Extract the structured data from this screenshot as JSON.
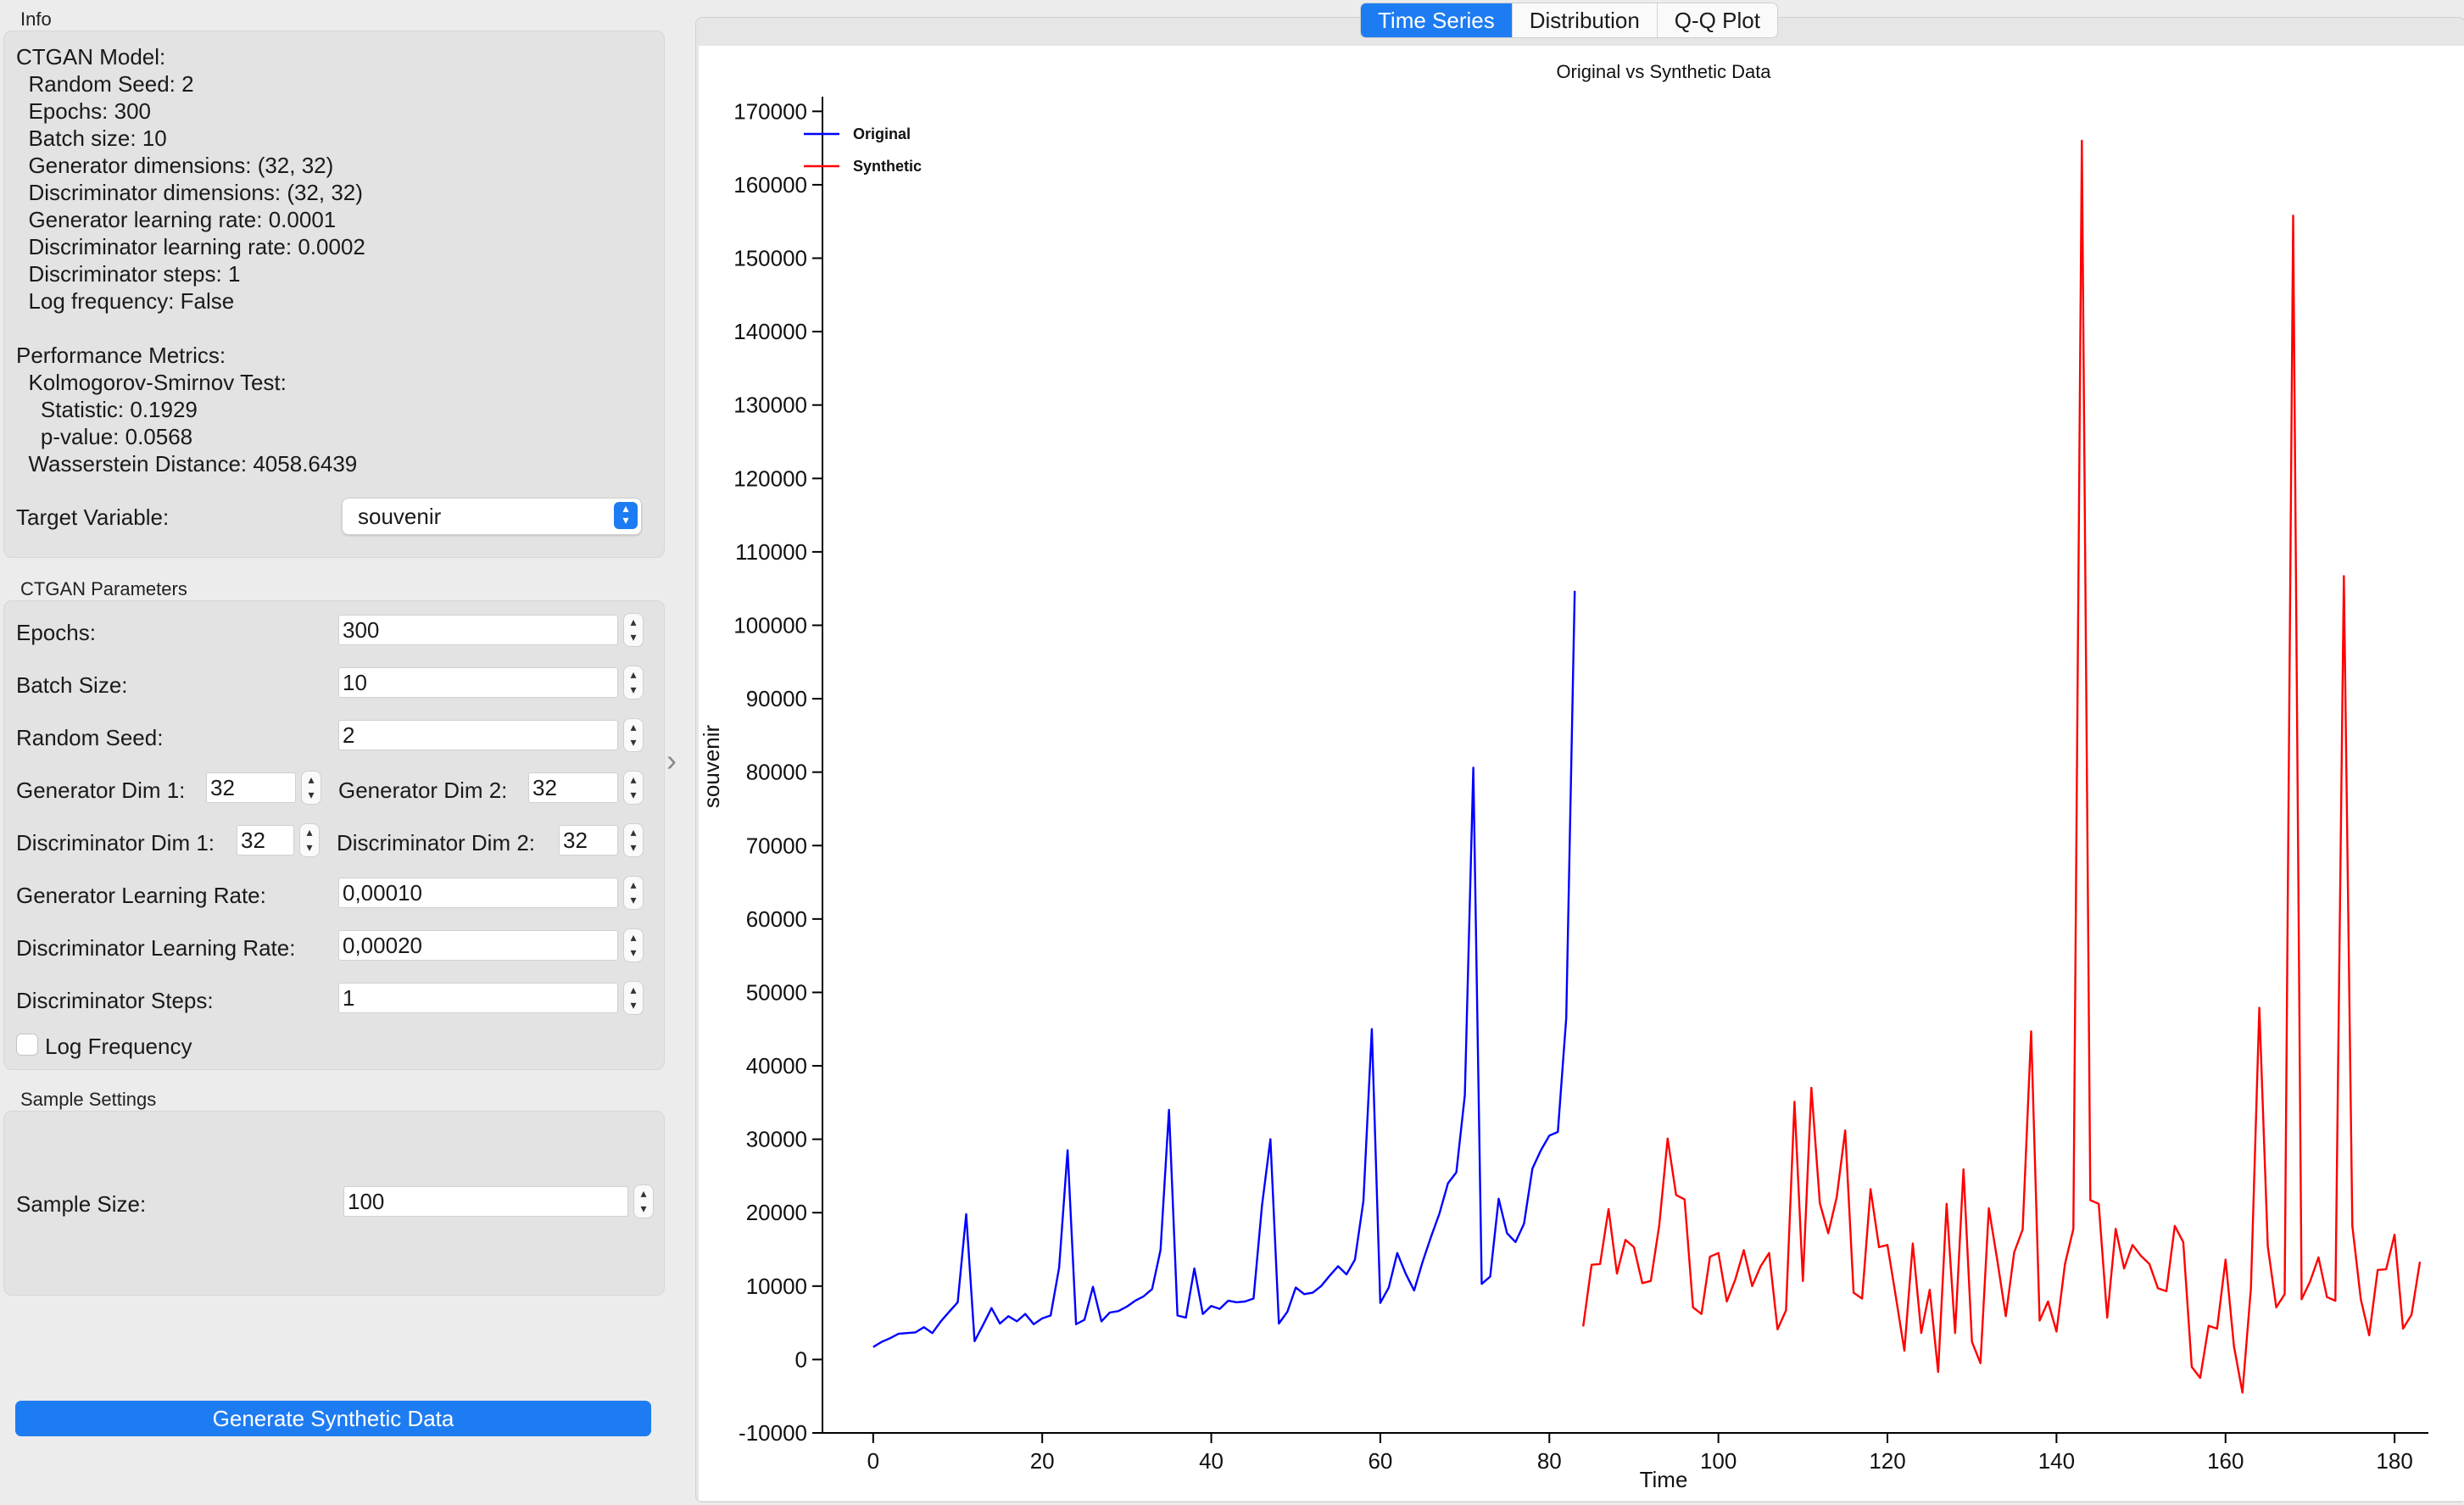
{
  "info": {
    "section_title": "Info",
    "lines": [
      "CTGAN Model:",
      "  Random Seed: 2",
      "  Epochs: 300",
      "  Batch size: 10",
      "  Generator dimensions: (32, 32)",
      "  Discriminator dimensions: (32, 32)",
      "  Generator learning rate: 0.0001",
      "  Discriminator learning rate: 0.0002",
      "  Discriminator steps: 1",
      "  Log frequency: False",
      "",
      "Performance Metrics:",
      "  Kolmogorov-Smirnov Test:",
      "    Statistic: 0.1929",
      "    p-value: 0.0568",
      "  Wasserstein Distance: 4058.6439"
    ],
    "target_label": "Target Variable:",
    "target_value": "souvenir"
  },
  "params": {
    "section_title": "CTGAN Parameters",
    "epochs_label": "Epochs:",
    "epochs": "300",
    "batch_label": "Batch Size:",
    "batch": "10",
    "seed_label": "Random Seed:",
    "seed": "2",
    "gen_dim1_label": "Generator Dim 1:",
    "gen_dim1": "32",
    "gen_dim2_label": "Generator Dim 2:",
    "gen_dim2": "32",
    "disc_dim1_label": "Discriminator Dim 1:",
    "disc_dim1": "32",
    "disc_dim2_label": "Discriminator Dim 2:",
    "disc_dim2": "32",
    "gen_lr_label": "Generator Learning Rate:",
    "gen_lr": "0,00010",
    "disc_lr_label": "Discriminator Learning Rate:",
    "disc_lr": "0,00020",
    "disc_steps_label": "Discriminator Steps:",
    "disc_steps": "1",
    "log_freq_label": "Log Frequency"
  },
  "sample": {
    "section_title": "Sample Settings",
    "size_label": "Sample Size:",
    "size": "100"
  },
  "generate_label": "Generate Synthetic Data",
  "tabs": [
    "Time Series",
    "Distribution",
    "Q-Q Plot"
  ],
  "colors": {
    "accent": "#1e7cf2",
    "original": "#0000ff",
    "synthetic": "#ff0000"
  },
  "chart_data": {
    "type": "line",
    "title": "Original vs Synthetic Data",
    "xlabel": "Time",
    "ylabel": "souvenir",
    "xlim": [
      -6,
      184
    ],
    "ylim": [
      -10000,
      172000
    ],
    "x_ticks": [
      0,
      20,
      40,
      60,
      80,
      100,
      120,
      140,
      160,
      180
    ],
    "y_ticks": [
      -10000,
      0,
      10000,
      20000,
      30000,
      40000,
      50000,
      60000,
      70000,
      80000,
      90000,
      100000,
      110000,
      120000,
      130000,
      140000,
      150000,
      160000,
      170000
    ],
    "legend_position": "top-left",
    "series": [
      {
        "name": "Original",
        "x_start": 0,
        "values": [
          1700,
          2400,
          2900,
          3500,
          3600,
          3700,
          4400,
          3600,
          5200,
          6500,
          7800,
          19800,
          2500,
          4700,
          7000,
          4900,
          5900,
          5200,
          6200,
          4800,
          5600,
          6000,
          12500,
          28500,
          4800,
          5400,
          9900,
          5200,
          6400,
          6600,
          7200,
          8000,
          8600,
          9600,
          14900,
          34000,
          6000,
          5700,
          12400,
          6200,
          7300,
          6900,
          8000,
          7800,
          7900,
          8300,
          21000,
          30000,
          4900,
          6500,
          9800,
          8900,
          9100,
          10000,
          11400,
          12700,
          11600,
          13600,
          21600,
          45000,
          7700,
          9800,
          14500,
          11700,
          9400,
          13300,
          16700,
          19900,
          24000,
          25500,
          36000,
          80600,
          10300,
          11300,
          21900,
          17200,
          16000,
          18500,
          26000,
          28500,
          30500,
          31000,
          46500,
          104700
        ]
      },
      {
        "name": "Synthetic",
        "x_start": 84,
        "values": [
          4500,
          12900,
          13000,
          20500,
          11700,
          16300,
          15300,
          10400,
          10700,
          18300,
          30100,
          22400,
          21800,
          7100,
          6200,
          14000,
          14500,
          7900,
          10900,
          14900,
          10000,
          12700,
          14500,
          4100,
          6700,
          35100,
          10700,
          37000,
          21300,
          17200,
          22100,
          31200,
          9100,
          8300,
          23200,
          15300,
          15600,
          8500,
          1200,
          15800,
          3600,
          9500,
          -1700,
          21200,
          3600,
          25900,
          2400,
          -500,
          20600,
          13500,
          5900,
          14600,
          17700,
          44700,
          5300,
          7900,
          3800,
          13000,
          17800,
          166000,
          21700,
          21200,
          5700,
          17800,
          12400,
          15600,
          14100,
          13000,
          9700,
          9300,
          18200,
          16000,
          -1000,
          -2500,
          4600,
          4200,
          13600,
          1800,
          -4500,
          9700,
          47900,
          15400,
          7100,
          8900,
          155800,
          8200,
          10600,
          13900,
          8500,
          8000,
          106700,
          18200,
          8200,
          3300,
          12200,
          12300,
          17000,
          4200,
          6100,
          13300
        ]
      }
    ]
  }
}
